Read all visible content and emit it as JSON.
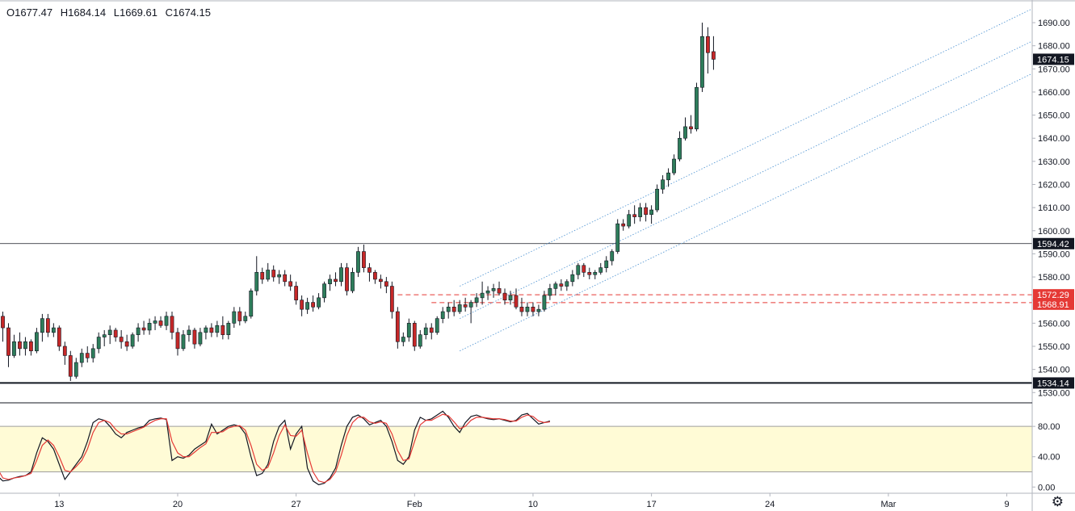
{
  "ohlc": {
    "open": "O1677.47",
    "high": "H1684.14",
    "low": "L1669.61",
    "close": "C1674.15"
  },
  "price_labels": {
    "last": "1674.15",
    "resistance": "1594.42",
    "dash1": "1572.29",
    "dash2": "1568.91",
    "support": "1534.14"
  },
  "colors": {
    "up": "#26a69a",
    "up_body": "#2e7d5b",
    "down": "#ef5350",
    "down_body": "#c62828",
    "wick": "#131722",
    "channel": "#5b9bd5",
    "dash": "#e53935",
    "osc_fill": "#fffbd6",
    "k_line": "#131722",
    "d_line": "#e53935",
    "label_black": "#131722",
    "label_red": "#e53935"
  },
  "chart_data": [
    {
      "type": "candlestick",
      "title": "",
      "xlabel": "",
      "ylabel": "",
      "ylim": [
        1528,
        1697
      ],
      "y_ticks": [
        "1530.00",
        "1540.00",
        "1550.00",
        "1560.00",
        "1570.00",
        "1580.00",
        "1590.00",
        "1600.00",
        "1610.00",
        "1620.00",
        "1630.00",
        "1640.00",
        "1650.00",
        "1660.00",
        "1670.00",
        "1680.00",
        "1690.00"
      ],
      "x_ticks": [
        {
          "label": "13",
          "x": 13
        },
        {
          "label": "20",
          "x": 34
        },
        {
          "label": "27",
          "x": 55
        },
        {
          "label": "Feb",
          "x": 76
        },
        {
          "label": "10",
          "x": 97
        },
        {
          "label": "17",
          "x": 118
        },
        {
          "label": "24",
          "x": 139
        },
        {
          "label": "Mar",
          "x": 160
        },
        {
          "label": "9",
          "x": 181
        }
      ],
      "x_range": [
        2.5,
        185.5
      ],
      "last_bar_close": 1674.15,
      "horizontal_lines": [
        {
          "value": 1594.42,
          "style": "solid-thin"
        },
        {
          "value": 1534.14,
          "style": "solid-thick"
        }
      ],
      "dashed_lines": [
        {
          "value": 1572.29,
          "from_x": 73
        },
        {
          "value": 1568.91,
          "from_x": 79
        }
      ],
      "channel": {
        "from": [
          84,
          1548
        ],
        "to": [
          185.5,
          1668
        ],
        "offsets": [
          0,
          14,
          28
        ]
      },
      "candles": [
        {
          "o": 1585,
          "h": 1587,
          "l": 1575,
          "c": 1578
        },
        {
          "o": 1578,
          "h": 1579,
          "l": 1553,
          "c": 1557
        },
        {
          "o": 1557,
          "h": 1566,
          "l": 1554,
          "c": 1563
        },
        {
          "o": 1563,
          "h": 1565,
          "l": 1552,
          "c": 1558
        },
        {
          "o": 1558,
          "h": 1560,
          "l": 1541,
          "c": 1546
        },
        {
          "o": 1546,
          "h": 1555,
          "l": 1545,
          "c": 1552
        },
        {
          "o": 1552,
          "h": 1556,
          "l": 1546,
          "c": 1549
        },
        {
          "o": 1549,
          "h": 1554,
          "l": 1546,
          "c": 1552
        },
        {
          "o": 1552,
          "h": 1553,
          "l": 1546,
          "c": 1548
        },
        {
          "o": 1548,
          "h": 1558,
          "l": 1547,
          "c": 1556
        },
        {
          "o": 1556,
          "h": 1564,
          "l": 1552,
          "c": 1562
        },
        {
          "o": 1562,
          "h": 1564,
          "l": 1554,
          "c": 1556
        },
        {
          "o": 1556,
          "h": 1560,
          "l": 1554,
          "c": 1558
        },
        {
          "o": 1558,
          "h": 1559,
          "l": 1548,
          "c": 1550
        },
        {
          "o": 1550,
          "h": 1552,
          "l": 1542,
          "c": 1546
        },
        {
          "o": 1546,
          "h": 1548,
          "l": 1535,
          "c": 1537
        },
        {
          "o": 1537,
          "h": 1545,
          "l": 1536,
          "c": 1543
        },
        {
          "o": 1543,
          "h": 1549,
          "l": 1541,
          "c": 1547
        },
        {
          "o": 1547,
          "h": 1550,
          "l": 1543,
          "c": 1545
        },
        {
          "o": 1545,
          "h": 1551,
          "l": 1543,
          "c": 1549
        },
        {
          "o": 1549,
          "h": 1556,
          "l": 1547,
          "c": 1554
        },
        {
          "o": 1554,
          "h": 1557,
          "l": 1550,
          "c": 1555
        },
        {
          "o": 1555,
          "h": 1559,
          "l": 1551,
          "c": 1557
        },
        {
          "o": 1557,
          "h": 1558,
          "l": 1552,
          "c": 1554
        },
        {
          "o": 1554,
          "h": 1557,
          "l": 1549,
          "c": 1552
        },
        {
          "o": 1552,
          "h": 1555,
          "l": 1548,
          "c": 1550
        },
        {
          "o": 1550,
          "h": 1556,
          "l": 1549,
          "c": 1555
        },
        {
          "o": 1555,
          "h": 1560,
          "l": 1552,
          "c": 1558
        },
        {
          "o": 1558,
          "h": 1561,
          "l": 1555,
          "c": 1557
        },
        {
          "o": 1557,
          "h": 1562,
          "l": 1555,
          "c": 1560
        },
        {
          "o": 1560,
          "h": 1563,
          "l": 1557,
          "c": 1561
        },
        {
          "o": 1561,
          "h": 1563,
          "l": 1558,
          "c": 1559
        },
        {
          "o": 1559,
          "h": 1565,
          "l": 1557,
          "c": 1563
        },
        {
          "o": 1563,
          "h": 1565,
          "l": 1553,
          "c": 1556
        },
        {
          "o": 1556,
          "h": 1558,
          "l": 1546,
          "c": 1549
        },
        {
          "o": 1549,
          "h": 1557,
          "l": 1548,
          "c": 1555
        },
        {
          "o": 1555,
          "h": 1559,
          "l": 1552,
          "c": 1557
        },
        {
          "o": 1557,
          "h": 1558,
          "l": 1549,
          "c": 1551
        },
        {
          "o": 1551,
          "h": 1558,
          "l": 1550,
          "c": 1556
        },
        {
          "o": 1556,
          "h": 1559,
          "l": 1553,
          "c": 1558
        },
        {
          "o": 1558,
          "h": 1560,
          "l": 1554,
          "c": 1556
        },
        {
          "o": 1556,
          "h": 1561,
          "l": 1554,
          "c": 1559
        },
        {
          "o": 1559,
          "h": 1563,
          "l": 1553,
          "c": 1555
        },
        {
          "o": 1555,
          "h": 1561,
          "l": 1553,
          "c": 1560
        },
        {
          "o": 1560,
          "h": 1567,
          "l": 1558,
          "c": 1565
        },
        {
          "o": 1565,
          "h": 1567,
          "l": 1559,
          "c": 1561
        },
        {
          "o": 1561,
          "h": 1565,
          "l": 1560,
          "c": 1563
        },
        {
          "o": 1563,
          "h": 1575,
          "l": 1562,
          "c": 1574
        },
        {
          "o": 1574,
          "h": 1589,
          "l": 1572,
          "c": 1582
        },
        {
          "o": 1582,
          "h": 1584,
          "l": 1577,
          "c": 1579
        },
        {
          "o": 1579,
          "h": 1586,
          "l": 1578,
          "c": 1583
        },
        {
          "o": 1583,
          "h": 1585,
          "l": 1578,
          "c": 1580
        },
        {
          "o": 1580,
          "h": 1583,
          "l": 1577,
          "c": 1581
        },
        {
          "o": 1581,
          "h": 1583,
          "l": 1576,
          "c": 1578
        },
        {
          "o": 1578,
          "h": 1581,
          "l": 1574,
          "c": 1576
        },
        {
          "o": 1576,
          "h": 1578,
          "l": 1568,
          "c": 1570
        },
        {
          "o": 1570,
          "h": 1572,
          "l": 1563,
          "c": 1566
        },
        {
          "o": 1566,
          "h": 1571,
          "l": 1564,
          "c": 1569
        },
        {
          "o": 1569,
          "h": 1572,
          "l": 1565,
          "c": 1567
        },
        {
          "o": 1567,
          "h": 1573,
          "l": 1566,
          "c": 1571
        },
        {
          "o": 1571,
          "h": 1578,
          "l": 1569,
          "c": 1577
        },
        {
          "o": 1577,
          "h": 1581,
          "l": 1574,
          "c": 1579
        },
        {
          "o": 1579,
          "h": 1582,
          "l": 1576,
          "c": 1578
        },
        {
          "o": 1578,
          "h": 1586,
          "l": 1576,
          "c": 1584
        },
        {
          "o": 1584,
          "h": 1586,
          "l": 1572,
          "c": 1574
        },
        {
          "o": 1574,
          "h": 1584,
          "l": 1573,
          "c": 1582
        },
        {
          "o": 1582,
          "h": 1593,
          "l": 1580,
          "c": 1591
        },
        {
          "o": 1591,
          "h": 1594,
          "l": 1582,
          "c": 1584
        },
        {
          "o": 1584,
          "h": 1586,
          "l": 1578,
          "c": 1582
        },
        {
          "o": 1582,
          "h": 1583,
          "l": 1577,
          "c": 1579
        },
        {
          "o": 1579,
          "h": 1581,
          "l": 1575,
          "c": 1578
        },
        {
          "o": 1578,
          "h": 1580,
          "l": 1573,
          "c": 1576
        },
        {
          "o": 1576,
          "h": 1578,
          "l": 1562,
          "c": 1565
        },
        {
          "o": 1565,
          "h": 1567,
          "l": 1549,
          "c": 1552
        },
        {
          "o": 1552,
          "h": 1556,
          "l": 1550,
          "c": 1554
        },
        {
          "o": 1554,
          "h": 1562,
          "l": 1552,
          "c": 1560
        },
        {
          "o": 1560,
          "h": 1561,
          "l": 1548,
          "c": 1550
        },
        {
          "o": 1550,
          "h": 1557,
          "l": 1549,
          "c": 1555
        },
        {
          "o": 1555,
          "h": 1560,
          "l": 1553,
          "c": 1558
        },
        {
          "o": 1558,
          "h": 1560,
          "l": 1553,
          "c": 1556
        },
        {
          "o": 1556,
          "h": 1563,
          "l": 1555,
          "c": 1562
        },
        {
          "o": 1562,
          "h": 1567,
          "l": 1560,
          "c": 1565
        },
        {
          "o": 1565,
          "h": 1569,
          "l": 1562,
          "c": 1567
        },
        {
          "o": 1567,
          "h": 1570,
          "l": 1563,
          "c": 1565
        },
        {
          "o": 1565,
          "h": 1570,
          "l": 1564,
          "c": 1568
        },
        {
          "o": 1568,
          "h": 1571,
          "l": 1565,
          "c": 1567
        },
        {
          "o": 1567,
          "h": 1570,
          "l": 1560,
          "c": 1569
        },
        {
          "o": 1569,
          "h": 1573,
          "l": 1567,
          "c": 1571
        },
        {
          "o": 1571,
          "h": 1578,
          "l": 1568,
          "c": 1573
        },
        {
          "o": 1573,
          "h": 1576,
          "l": 1570,
          "c": 1574
        },
        {
          "o": 1574,
          "h": 1577,
          "l": 1571,
          "c": 1575
        },
        {
          "o": 1575,
          "h": 1578,
          "l": 1572,
          "c": 1573
        },
        {
          "o": 1573,
          "h": 1575,
          "l": 1568,
          "c": 1570
        },
        {
          "o": 1570,
          "h": 1574,
          "l": 1568,
          "c": 1572
        },
        {
          "o": 1572,
          "h": 1575,
          "l": 1566,
          "c": 1567
        },
        {
          "o": 1567,
          "h": 1571,
          "l": 1563,
          "c": 1565
        },
        {
          "o": 1565,
          "h": 1569,
          "l": 1563,
          "c": 1567
        },
        {
          "o": 1567,
          "h": 1569,
          "l": 1563,
          "c": 1565
        },
        {
          "o": 1565,
          "h": 1568,
          "l": 1563,
          "c": 1566
        },
        {
          "o": 1566,
          "h": 1574,
          "l": 1565,
          "c": 1572
        },
        {
          "o": 1572,
          "h": 1577,
          "l": 1570,
          "c": 1575
        },
        {
          "o": 1575,
          "h": 1578,
          "l": 1572,
          "c": 1577
        },
        {
          "o": 1577,
          "h": 1579,
          "l": 1574,
          "c": 1576
        },
        {
          "o": 1576,
          "h": 1579,
          "l": 1574,
          "c": 1578
        },
        {
          "o": 1578,
          "h": 1583,
          "l": 1576,
          "c": 1581
        },
        {
          "o": 1581,
          "h": 1586,
          "l": 1579,
          "c": 1585
        },
        {
          "o": 1585,
          "h": 1586,
          "l": 1580,
          "c": 1582
        },
        {
          "o": 1582,
          "h": 1584,
          "l": 1579,
          "c": 1581
        },
        {
          "o": 1581,
          "h": 1583,
          "l": 1579,
          "c": 1582
        },
        {
          "o": 1582,
          "h": 1586,
          "l": 1581,
          "c": 1584
        },
        {
          "o": 1584,
          "h": 1589,
          "l": 1582,
          "c": 1587
        },
        {
          "o": 1587,
          "h": 1592,
          "l": 1585,
          "c": 1591
        },
        {
          "o": 1591,
          "h": 1605,
          "l": 1590,
          "c": 1603
        },
        {
          "o": 1603,
          "h": 1605,
          "l": 1600,
          "c": 1602
        },
        {
          "o": 1602,
          "h": 1609,
          "l": 1601,
          "c": 1607
        },
        {
          "o": 1607,
          "h": 1611,
          "l": 1603,
          "c": 1606
        },
        {
          "o": 1606,
          "h": 1612,
          "l": 1604,
          "c": 1610
        },
        {
          "o": 1610,
          "h": 1612,
          "l": 1604,
          "c": 1607
        },
        {
          "o": 1607,
          "h": 1611,
          "l": 1603,
          "c": 1609
        },
        {
          "o": 1609,
          "h": 1620,
          "l": 1608,
          "c": 1618
        },
        {
          "o": 1618,
          "h": 1624,
          "l": 1616,
          "c": 1622
        },
        {
          "o": 1622,
          "h": 1627,
          "l": 1619,
          "c": 1625
        },
        {
          "o": 1625,
          "h": 1633,
          "l": 1624,
          "c": 1631
        },
        {
          "o": 1631,
          "h": 1643,
          "l": 1630,
          "c": 1640
        },
        {
          "o": 1640,
          "h": 1649,
          "l": 1639,
          "c": 1645
        },
        {
          "o": 1645,
          "h": 1650,
          "l": 1642,
          "c": 1644
        },
        {
          "o": 1644,
          "h": 1664,
          "l": 1643,
          "c": 1662
        },
        {
          "o": 1662,
          "h": 1690,
          "l": 1660,
          "c": 1684
        },
        {
          "o": 1684,
          "h": 1688,
          "l": 1668,
          "c": 1677
        },
        {
          "o": 1677.47,
          "h": 1684.14,
          "l": 1669.61,
          "c": 1674.15
        }
      ]
    },
    {
      "type": "line",
      "title": "",
      "ylim": [
        -5,
        110
      ],
      "y_ticks": [
        "0.00",
        "40.00",
        "80.00"
      ],
      "band": [
        20,
        80
      ],
      "series": [
        {
          "key": "k",
          "values": [
            70,
            40,
            15,
            8,
            9,
            12,
            14,
            15,
            20,
            45,
            65,
            60,
            50,
            30,
            10,
            20,
            30,
            40,
            60,
            85,
            90,
            88,
            80,
            70,
            65,
            72,
            75,
            78,
            80,
            88,
            90,
            91,
            89,
            35,
            40,
            38,
            42,
            50,
            55,
            60,
            83,
            70,
            75,
            80,
            82,
            80,
            70,
            40,
            15,
            18,
            30,
            60,
            80,
            88,
            50,
            70,
            80,
            25,
            8,
            3,
            5,
            12,
            25,
            55,
            80,
            92,
            95,
            90,
            82,
            85,
            88,
            80,
            60,
            35,
            30,
            40,
            75,
            92,
            88,
            90,
            95,
            100,
            92,
            80,
            72,
            85,
            93,
            95,
            92,
            90,
            89,
            90,
            88,
            86,
            88,
            95,
            97,
            90,
            83,
            85,
            87
          ]
        },
        {
          "key": "d",
          "values": [
            65,
            48,
            25,
            12,
            10,
            12,
            13,
            15,
            18,
            35,
            55,
            62,
            55,
            40,
            22,
            20,
            27,
            35,
            50,
            72,
            85,
            88,
            85,
            76,
            70,
            70,
            73,
            76,
            79,
            84,
            88,
            90,
            90,
            60,
            45,
            40,
            40,
            46,
            52,
            57,
            72,
            72,
            73,
            78,
            80,
            81,
            75,
            55,
            30,
            22,
            26,
            45,
            68,
            82,
            68,
            67,
            75,
            45,
            20,
            8,
            6,
            10,
            20,
            42,
            68,
            85,
            92,
            92,
            86,
            84,
            86,
            84,
            70,
            48,
            35,
            37,
            60,
            82,
            88,
            88,
            92,
            96,
            94,
            86,
            77,
            80,
            88,
            92,
            92,
            91,
            90,
            90,
            89,
            87,
            87,
            92,
            95,
            93,
            87,
            85,
            86
          ]
        }
      ]
    }
  ]
}
